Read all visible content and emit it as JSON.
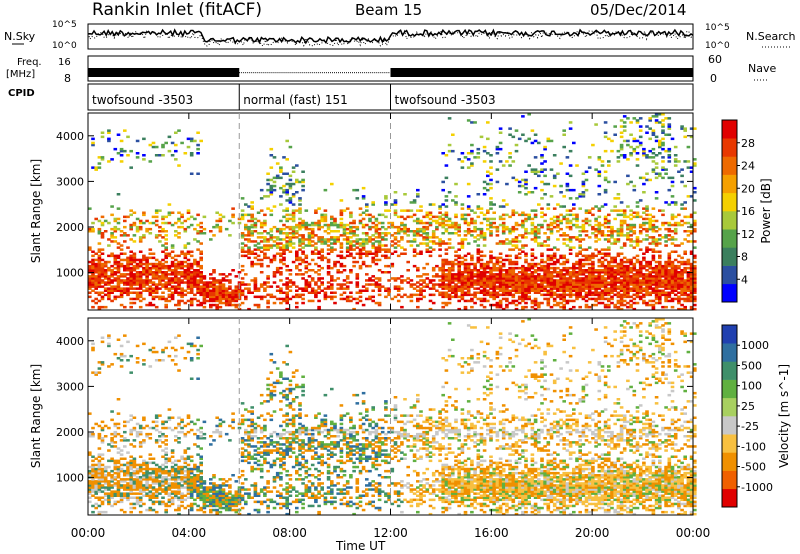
{
  "header": {
    "title": "Rankin Inlet (fitACF)",
    "beam": "Beam 15",
    "date": "05/Dec/2014"
  },
  "noise_panel": {
    "left_label": "N.Sky",
    "right_label": "N.Search",
    "tick_top": "10^5",
    "tick_bottom": "10^0"
  },
  "freq_panel": {
    "left_label": "Freq.",
    "left_unit": "[MHz]",
    "tick_top": "16",
    "tick_bottom": "8",
    "right_label": "Nave",
    "right_tick_top": "60",
    "right_tick_bottom": "0"
  },
  "cpid_panel": {
    "label": "CPID",
    "segments": [
      {
        "start": 0,
        "end": 6,
        "label": "twofsound -3503"
      },
      {
        "start": 6,
        "end": 12,
        "label": "normal (fast) 151"
      },
      {
        "start": 12,
        "end": 24,
        "label": "twofsound -3503"
      }
    ]
  },
  "x_axis": {
    "label": "Time UT",
    "ticks": [
      "00:00",
      "04:00",
      "08:00",
      "12:00",
      "16:00",
      "20:00",
      "00:00"
    ],
    "tick_hours": [
      0,
      4,
      8,
      12,
      16,
      20,
      24
    ]
  },
  "mode_change_hours": [
    6,
    12
  ],
  "power_panel": {
    "ylabel": "Slant Range [km]",
    "yticks": [
      "1000",
      "2000",
      "3000",
      "4000"
    ],
    "colorbar_label": "Power [dB]",
    "colorbar_ticks": [
      "4",
      "8",
      "12",
      "16",
      "20",
      "24",
      "28"
    ],
    "colors": [
      "#0000ff",
      "#2b4fa0",
      "#3b7f5e",
      "#56a34a",
      "#a8c93a",
      "#f4d000",
      "#f5a000",
      "#ee6a00",
      "#e83800",
      "#e00000"
    ]
  },
  "velocity_panel": {
    "ylabel": "Slant Range [km]",
    "yticks": [
      "1000",
      "2000",
      "3000",
      "4000"
    ],
    "colorbar_label": "Velocity [m s^-1]",
    "colorbar_ticks": [
      "1000",
      "500",
      "100",
      "25",
      "-25",
      "-100",
      "-500",
      "-1000"
    ],
    "colors": [
      "#2040b0",
      "#2f6fa0",
      "#3f8f6a",
      "#60b040",
      "#a8d060",
      "#c8c8c8",
      "#f8c040",
      "#f09000",
      "#f06000",
      "#e00000"
    ]
  },
  "chart_data": {
    "type": "heatmap",
    "title": "Rankin Inlet (fitACF)",
    "xlabel": "Time UT",
    "ylabel": "Slant Range [km]",
    "xlim": [
      0,
      24
    ],
    "ylim": [
      180,
      4500
    ],
    "series": [
      {
        "name": "Power [dB]",
        "colorbar_range": [
          0,
          30
        ]
      },
      {
        "name": "Velocity [m s^-1]",
        "colorbar_range": [
          -1000,
          1000
        ]
      }
    ]
  }
}
